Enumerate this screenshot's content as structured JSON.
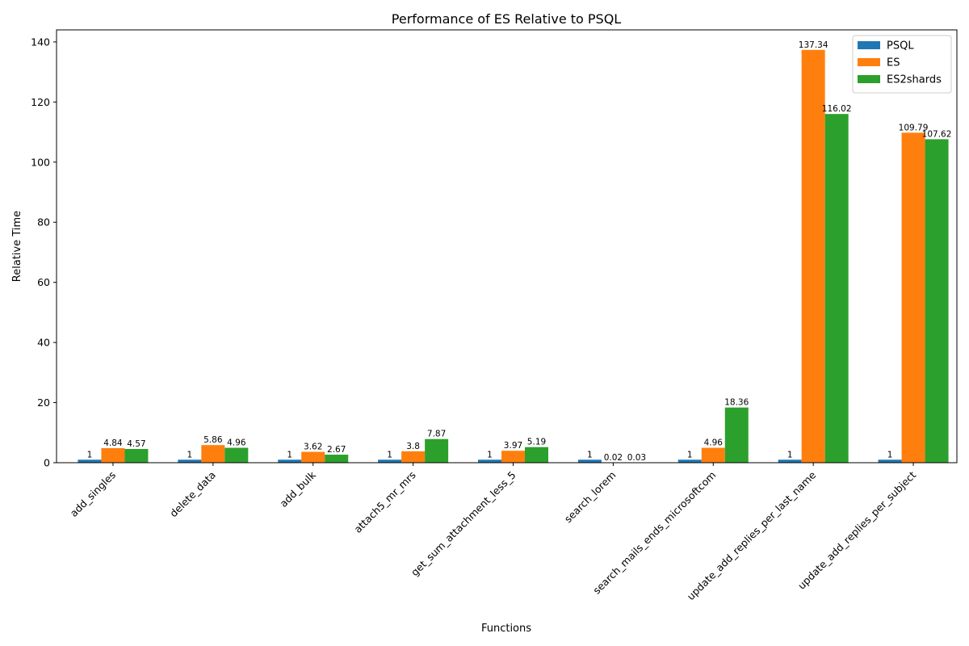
{
  "chart_data": {
    "type": "bar",
    "title": "Performance of ES Relative to PSQL",
    "xlabel": "Functions",
    "ylabel": "Relative Time",
    "ylim": [
      0,
      144
    ],
    "yticks": [
      0,
      20,
      40,
      60,
      80,
      100,
      120,
      140
    ],
    "grid": false,
    "legend_position": "top-right",
    "categories": [
      "add_singles",
      "delete_data",
      "add_bulk",
      "attach5_mr_mrs",
      "get_sum_attachment_less_5",
      "search_lorem",
      "search_mails_ends_microsoftcom",
      "update_add_replies_per_last_name",
      "update_add_replies_per_subject"
    ],
    "series": [
      {
        "name": "PSQL",
        "color": "#1f77b4",
        "values": [
          1,
          1,
          1,
          1,
          1,
          1,
          1,
          1,
          1
        ]
      },
      {
        "name": "ES",
        "color": "#ff7f0e",
        "values": [
          4.84,
          5.86,
          3.62,
          3.8,
          3.97,
          0.02,
          4.96,
          137.34,
          109.79
        ]
      },
      {
        "name": "ES2shards",
        "color": "#2ca02c",
        "values": [
          4.57,
          4.96,
          2.67,
          7.87,
          5.19,
          0.03,
          18.36,
          116.02,
          107.62
        ]
      }
    ]
  }
}
